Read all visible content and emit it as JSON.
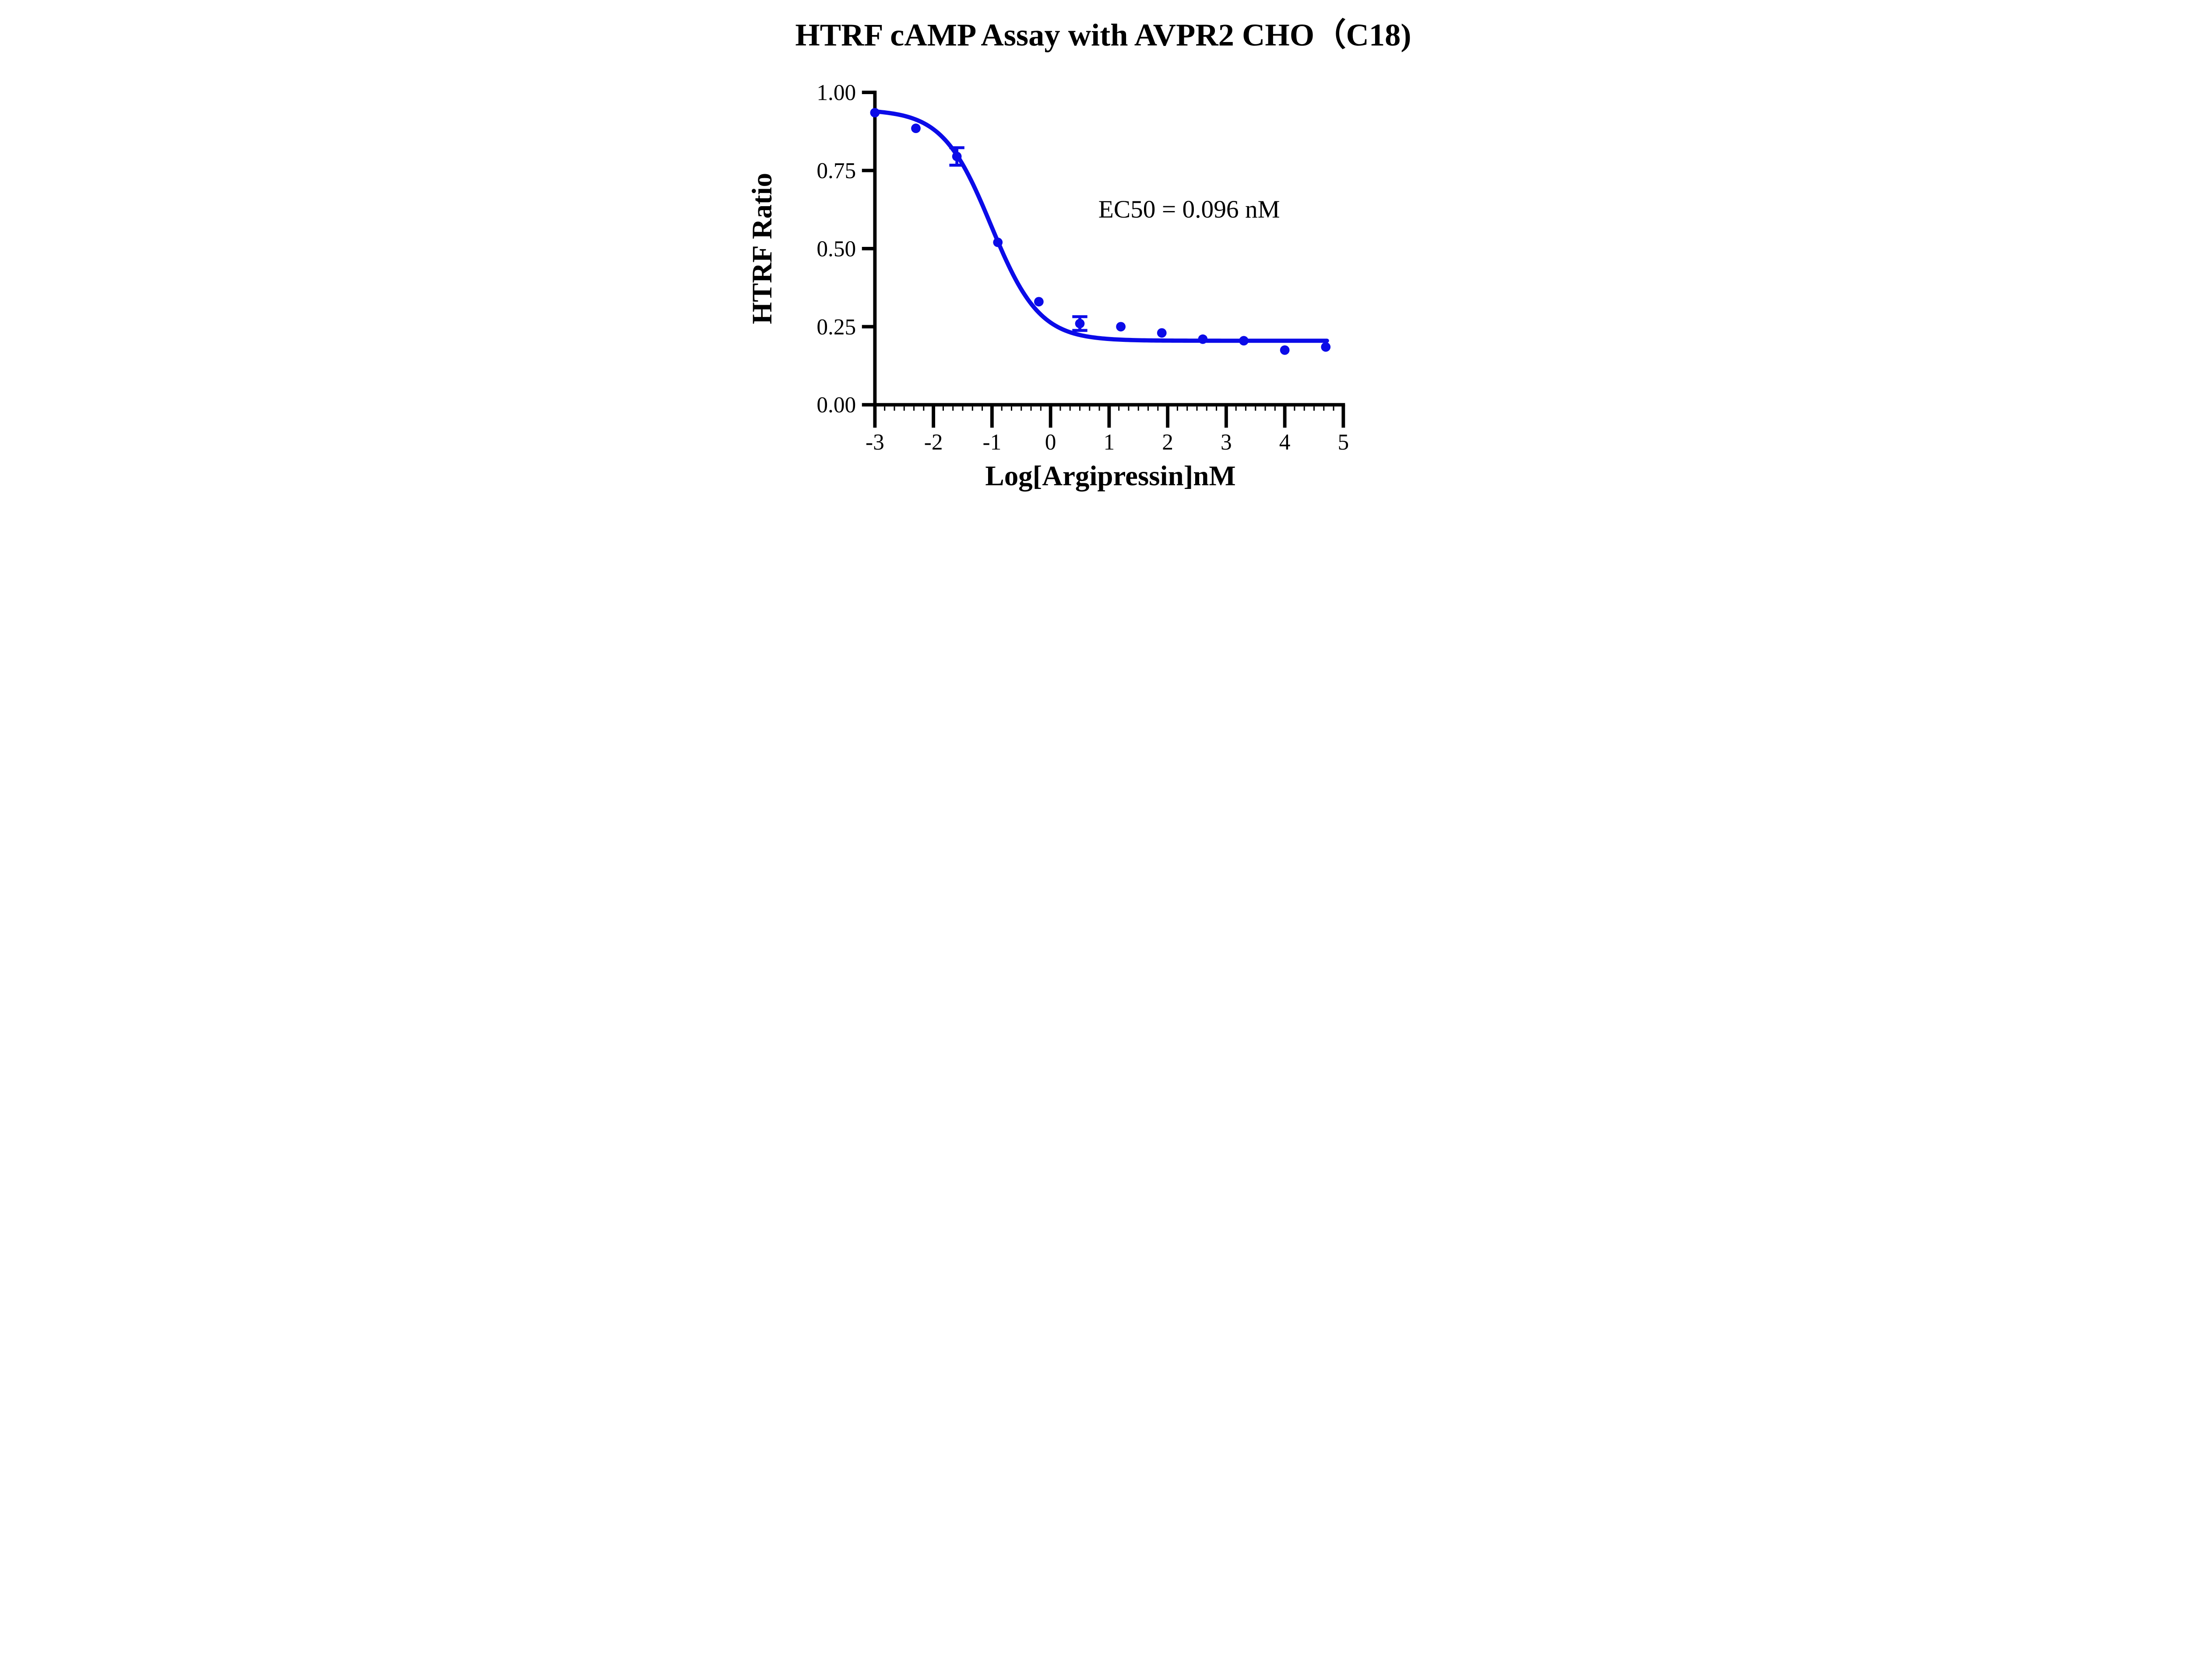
{
  "page": {
    "background": "#ffffff"
  },
  "chart_data": {
    "type": "scatter",
    "title": "HTRF cAMP Assay with AVPR2 CHO（C18)",
    "xlabel": "Log[Argipressin]nM",
    "ylabel": "HTRF Ratio",
    "annotation": "EC50 = 0.096 nM",
    "ec50_nM": 0.096,
    "grid": false,
    "legend": "none",
    "xlim": [
      -3,
      5
    ],
    "ylim": [
      0.0,
      1.0
    ],
    "x_ticks": [
      -3,
      -2,
      -1,
      0,
      1,
      2,
      3,
      4,
      5
    ],
    "x_tick_labels": [
      "-3",
      "-2",
      "-1",
      "0",
      "1",
      "2",
      "3",
      "4",
      "5"
    ],
    "x_minor_ticks_per_interval": 5,
    "y_ticks": [
      0.0,
      0.25,
      0.5,
      0.75,
      1.0
    ],
    "y_tick_labels": [
      "0.00",
      "0.25",
      "0.50",
      "0.75",
      "1.00"
    ],
    "points": [
      {
        "x": -3.0,
        "y": 0.935,
        "err": 0
      },
      {
        "x": -2.3,
        "y": 0.885,
        "err": 0
      },
      {
        "x": -1.6,
        "y": 0.795,
        "err": 0.028
      },
      {
        "x": -0.9,
        "y": 0.52,
        "err": 0
      },
      {
        "x": -0.2,
        "y": 0.33,
        "err": 0
      },
      {
        "x": 0.5,
        "y": 0.26,
        "err": 0.022
      },
      {
        "x": 1.2,
        "y": 0.25,
        "err": 0
      },
      {
        "x": 1.9,
        "y": 0.23,
        "err": 0
      },
      {
        "x": 2.6,
        "y": 0.21,
        "err": 0
      },
      {
        "x": 3.3,
        "y": 0.205,
        "err": 0
      },
      {
        "x": 4.0,
        "y": 0.175,
        "err": 0
      },
      {
        "x": 4.7,
        "y": 0.185,
        "err": 0
      }
    ],
    "fit_curve": {
      "model": "four-parameter-logistic",
      "top": 0.945,
      "bottom": 0.205,
      "log_ec50": -1.018,
      "hill_slope": 1.05,
      "x_start": -3.0,
      "x_end": 4.72
    },
    "colors": {
      "series": "#0b0be8",
      "axis": "#000000",
      "background": "#ffffff"
    }
  }
}
